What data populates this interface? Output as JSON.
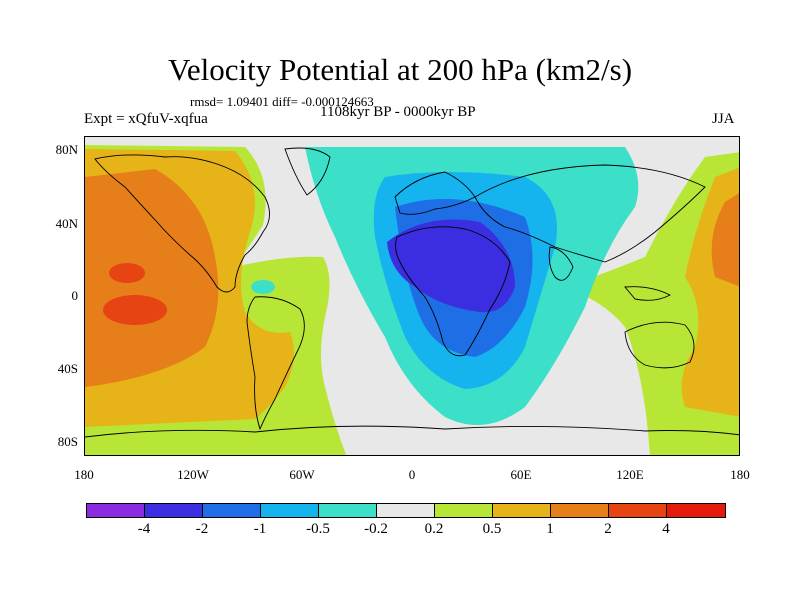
{
  "title": "Velocity Potential at 200 hPa (km2/s)",
  "stats": "rmsd= 1.09401 diff= -0.000124663",
  "experiment": "Expt = xQfuV-xqfua",
  "period": "1108kyr BP - 0000kyr BP",
  "season": "JJA",
  "y_axis": {
    "labels": [
      "80N",
      "40N",
      "0",
      "40S",
      "80S"
    ]
  },
  "x_axis": {
    "labels": [
      "180",
      "120W",
      "60W",
      "0",
      "60E",
      "120E",
      "180"
    ]
  },
  "colorbar": {
    "colors": [
      "#8a2be2",
      "#3a2ee0",
      "#1e6fe6",
      "#16b4ee",
      "#3ce0c8",
      "#e8e8e8",
      "#b8e636",
      "#e6b418",
      "#e67e1a",
      "#e64412",
      "#e61a0a"
    ],
    "labels": [
      "-4",
      "-2",
      "-1",
      "-0.5",
      "-0.2",
      "0.2",
      "0.5",
      "1",
      "2",
      "4"
    ]
  }
}
